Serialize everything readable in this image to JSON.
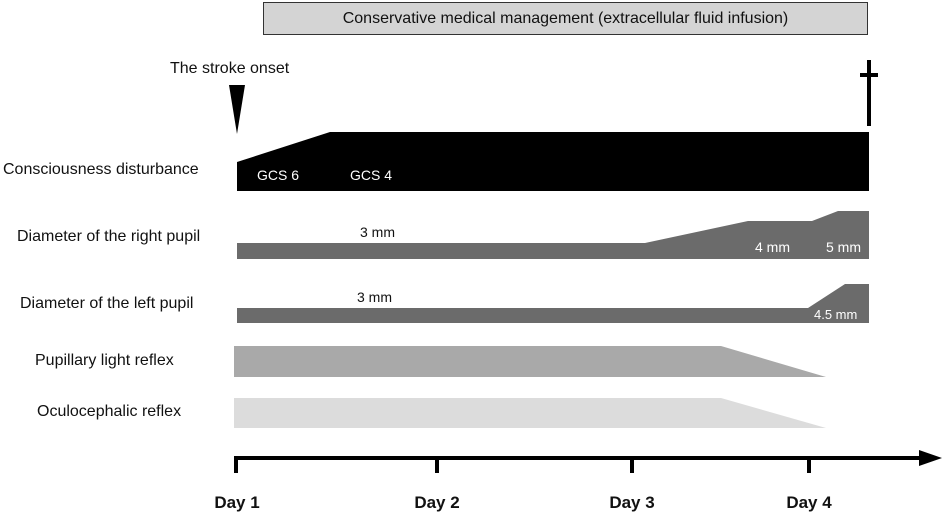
{
  "banner": {
    "text": "Conservative medical management (extracellular fluid infusion)"
  },
  "onset": {
    "label": "The stroke onset",
    "marker_icon": "down-triangle-icon"
  },
  "death_marker": {
    "icon": "dagger-cross-icon"
  },
  "rows": {
    "consciousness": {
      "label": "Consciousness disturbance",
      "values": [
        "GCS 6",
        "GCS 4"
      ],
      "color": "#000000"
    },
    "right_pupil": {
      "label": "Diameter of the right pupil",
      "values": [
        "3 mm",
        "4 mm",
        "5 mm"
      ],
      "color": "#6b6b6b"
    },
    "left_pupil": {
      "label": "Diameter of the left pupil",
      "values": [
        "3 mm",
        "4.5 mm"
      ],
      "color": "#6b6b6b"
    },
    "light_reflex": {
      "label": "Pupillary light reflex",
      "color": "#a9a9a9"
    },
    "oculocephalic": {
      "label": "Oculocephalic reflex",
      "color": "#dcdcdc"
    }
  },
  "timeline": {
    "days": [
      "Day 1",
      "Day 2",
      "Day 3",
      "Day 4"
    ]
  }
}
